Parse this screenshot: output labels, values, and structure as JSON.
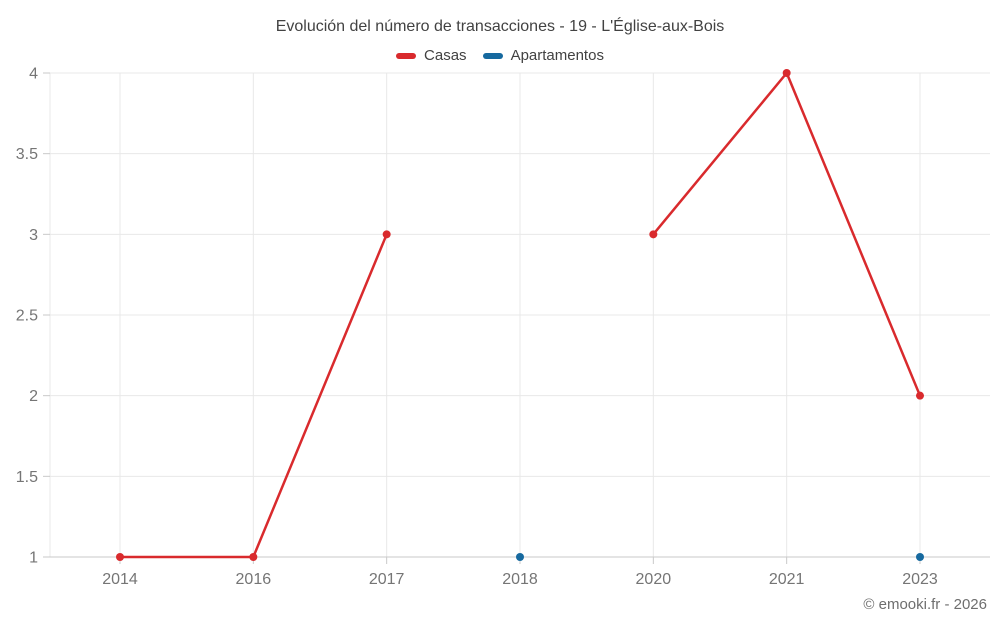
{
  "page": {
    "credit": "© emooki.fr - 2026"
  },
  "chart_data": {
    "type": "line",
    "title": "Evolución del número de transacciones - 19 - L'Église-aux-Bois",
    "categories": [
      "2014",
      "2016",
      "2017",
      "2018",
      "2020",
      "2021",
      "2023"
    ],
    "series": [
      {
        "name": "Casas",
        "color": "#d92a2d",
        "values": [
          1,
          1,
          3,
          null,
          3,
          4,
          2
        ]
      },
      {
        "name": "Apartamentos",
        "color": "#16699f",
        "values": [
          null,
          null,
          null,
          1,
          null,
          null,
          1
        ]
      }
    ],
    "xlabel": "",
    "ylabel": "",
    "ylim": [
      1,
      4
    ],
    "yticks": [
      1,
      1.5,
      2,
      2.5,
      3,
      3.5,
      4
    ],
    "grid": true,
    "legend_position": "top",
    "marker": "circle"
  },
  "colors": {
    "background": "#ffffff",
    "gridline": "#e8e8e8",
    "axis_line": "#c9c9c9",
    "tick_label": "#757575",
    "title_text": "#424242",
    "credit_text": "#6e6e6e"
  }
}
